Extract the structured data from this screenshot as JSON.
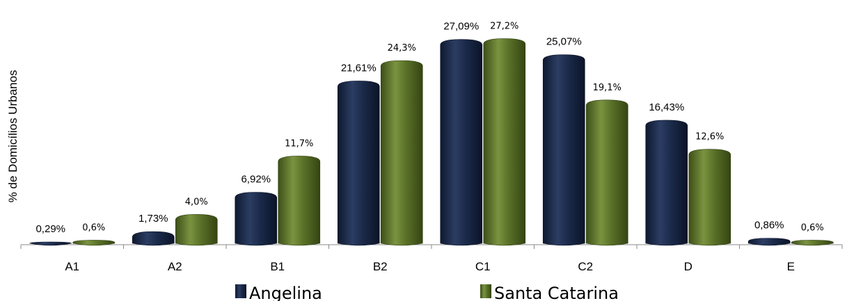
{
  "chart_data": {
    "type": "bar",
    "title": "",
    "xlabel": "",
    "ylabel": "% de Domicílios Urbanos",
    "categories": [
      "A1",
      "A2",
      "B1",
      "B2",
      "C1",
      "C2",
      "D",
      "E"
    ],
    "series": [
      {
        "name": "Angelina",
        "color": "#1b2a4a",
        "values": [
          0.29,
          1.73,
          6.92,
          21.61,
          27.09,
          25.07,
          16.43,
          0.86
        ],
        "labels": [
          "0,29%",
          "1,73%",
          "6,92%",
          "21,61%",
          "27,09%",
          "25,07%",
          "16,43%",
          "0,86%"
        ]
      },
      {
        "name": "Santa Catarina",
        "color": "#5a7128",
        "values": [
          0.6,
          4.0,
          11.7,
          24.3,
          27.2,
          19.1,
          12.6,
          0.6
        ],
        "labels": [
          "0,6%",
          "4,0%",
          "11,7%",
          "24,3%",
          "27,2%",
          "19,1%",
          "12,6%",
          "0,6%"
        ]
      }
    ],
    "ylim": [
      0,
      28
    ],
    "grid": false,
    "legend_position": "bottom"
  }
}
